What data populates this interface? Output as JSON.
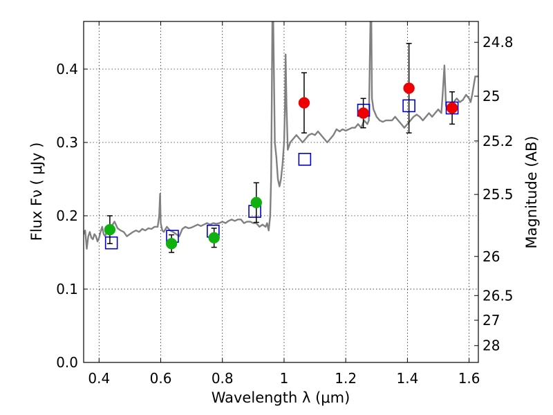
{
  "chart_data": {
    "type": "scatter",
    "xlabel": "Wavelength  λ (μm)",
    "ylabel": "Flux  Fν  ( μJy )",
    "y2label": "Magnitude (AB)",
    "xlim": [
      0.35,
      1.63
    ],
    "ylim": [
      0.0,
      0.465
    ],
    "grid": true,
    "x_ticks": [
      0.4,
      0.6,
      0.8,
      1.0,
      1.2,
      1.4,
      1.6
    ],
    "x_tick_labels": [
      "0.4",
      "0.6",
      "0.8",
      "1",
      "1.2",
      "1.4",
      "1.6"
    ],
    "y_ticks": [
      0.0,
      0.1,
      0.2,
      0.3,
      0.4
    ],
    "y_tick_labels": [
      "0.0",
      "0.1",
      "0.2",
      "0.3",
      "0.4"
    ],
    "mag_ticks": [
      {
        "label": "24.8",
        "mag": 24.8
      },
      {
        "label": "25",
        "mag": 25.0
      },
      {
        "label": "25.2",
        "mag": 25.2
      },
      {
        "label": "25.5",
        "mag": 25.5
      },
      {
        "label": "26",
        "mag": 26.0
      },
      {
        "label": "26.5",
        "mag": 26.5
      },
      {
        "label": "27",
        "mag": 27.0
      },
      {
        "label": "28",
        "mag": 28.0
      }
    ],
    "series": [
      {
        "kind": "line",
        "color": "#808080",
        "x": [
          0.35,
          0.355,
          0.36,
          0.365,
          0.37,
          0.375,
          0.38,
          0.385,
          0.39,
          0.395,
          0.4,
          0.405,
          0.41,
          0.415,
          0.42,
          0.425,
          0.43,
          0.44,
          0.45,
          0.46,
          0.47,
          0.48,
          0.49,
          0.5,
          0.51,
          0.52,
          0.53,
          0.54,
          0.55,
          0.56,
          0.57,
          0.58,
          0.59,
          0.595,
          0.598,
          0.6,
          0.605,
          0.61,
          0.62,
          0.63,
          0.64,
          0.65,
          0.66,
          0.67,
          0.68,
          0.69,
          0.7,
          0.71,
          0.72,
          0.73,
          0.74,
          0.75,
          0.76,
          0.77,
          0.78,
          0.79,
          0.8,
          0.81,
          0.82,
          0.83,
          0.84,
          0.85,
          0.86,
          0.87,
          0.88,
          0.89,
          0.9,
          0.91,
          0.92,
          0.93,
          0.94,
          0.945,
          0.95,
          0.955,
          0.958,
          0.96,
          0.962,
          0.965,
          0.97,
          0.975,
          0.98,
          0.985,
          0.99,
          0.995,
          1.0,
          1.003,
          1.005,
          1.008,
          1.012,
          1.02,
          1.03,
          1.04,
          1.05,
          1.06,
          1.07,
          1.08,
          1.09,
          1.1,
          1.11,
          1.12,
          1.13,
          1.14,
          1.15,
          1.16,
          1.17,
          1.18,
          1.19,
          1.2,
          1.21,
          1.22,
          1.23,
          1.24,
          1.25,
          1.26,
          1.27,
          1.275,
          1.28,
          1.283,
          1.285,
          1.29,
          1.295,
          1.3,
          1.31,
          1.32,
          1.33,
          1.34,
          1.35,
          1.36,
          1.37,
          1.38,
          1.39,
          1.4,
          1.41,
          1.42,
          1.43,
          1.44,
          1.45,
          1.46,
          1.47,
          1.48,
          1.49,
          1.5,
          1.51,
          1.515,
          1.52,
          1.525,
          1.53,
          1.54,
          1.55,
          1.56,
          1.57,
          1.58,
          1.59,
          1.6,
          1.605,
          1.61,
          1.62,
          1.63
        ],
        "y": [
          0.175,
          0.18,
          0.155,
          0.172,
          0.178,
          0.17,
          0.168,
          0.175,
          0.172,
          0.165,
          0.17,
          0.178,
          0.185,
          0.175,
          0.172,
          0.18,
          0.178,
          0.185,
          0.192,
          0.183,
          0.18,
          0.178,
          0.172,
          0.175,
          0.178,
          0.18,
          0.178,
          0.182,
          0.18,
          0.183,
          0.182,
          0.185,
          0.185,
          0.2,
          0.23,
          0.19,
          0.18,
          0.178,
          0.185,
          0.18,
          0.178,
          0.175,
          0.172,
          0.182,
          0.185,
          0.183,
          0.184,
          0.186,
          0.188,
          0.186,
          0.188,
          0.19,
          0.188,
          0.19,
          0.189,
          0.19,
          0.192,
          0.19,
          0.193,
          0.195,
          0.193,
          0.195,
          0.195,
          0.19,
          0.192,
          0.192,
          0.19,
          0.19,
          0.185,
          0.188,
          0.185,
          0.19,
          0.18,
          0.2,
          0.25,
          0.35,
          0.465,
          0.465,
          0.3,
          0.28,
          0.25,
          0.24,
          0.25,
          0.27,
          0.3,
          0.35,
          0.42,
          0.35,
          0.29,
          0.3,
          0.305,
          0.31,
          0.305,
          0.3,
          0.305,
          0.31,
          0.312,
          0.31,
          0.315,
          0.31,
          0.305,
          0.3,
          0.305,
          0.31,
          0.318,
          0.315,
          0.318,
          0.316,
          0.318,
          0.32,
          0.32,
          0.325,
          0.32,
          0.33,
          0.325,
          0.33,
          0.465,
          0.465,
          0.36,
          0.345,
          0.34,
          0.335,
          0.33,
          0.328,
          0.33,
          0.33,
          0.33,
          0.335,
          0.33,
          0.325,
          0.32,
          0.325,
          0.33,
          0.335,
          0.338,
          0.335,
          0.33,
          0.335,
          0.34,
          0.335,
          0.34,
          0.345,
          0.34,
          0.37,
          0.405,
          0.35,
          0.345,
          0.35,
          0.355,
          0.36,
          0.355,
          0.358,
          0.365,
          0.36,
          0.355,
          0.365,
          0.39,
          0.39
        ]
      },
      {
        "kind": "open-square",
        "color": "#0000d0",
        "x": [
          0.44,
          0.638,
          0.77,
          0.905,
          1.067,
          1.258,
          1.405,
          1.545
        ],
        "y": [
          0.163,
          0.172,
          0.179,
          0.206,
          0.277,
          0.344,
          0.35,
          0.347
        ]
      },
      {
        "kind": "point-errorbar",
        "color": "#10b010",
        "x": [
          0.435,
          0.635,
          0.773,
          0.91
        ],
        "y": [
          0.181,
          0.162,
          0.17,
          0.218
        ],
        "yerr": [
          0.019,
          0.012,
          0.013,
          0.027
        ]
      },
      {
        "kind": "point-errorbar",
        "color": "#ee0000",
        "x": [
          1.065,
          1.257,
          1.405,
          1.545
        ],
        "y": [
          0.354,
          0.34,
          0.374,
          0.347
        ],
        "yerr": [
          0.041,
          0.02,
          0.061,
          0.022
        ]
      }
    ]
  }
}
